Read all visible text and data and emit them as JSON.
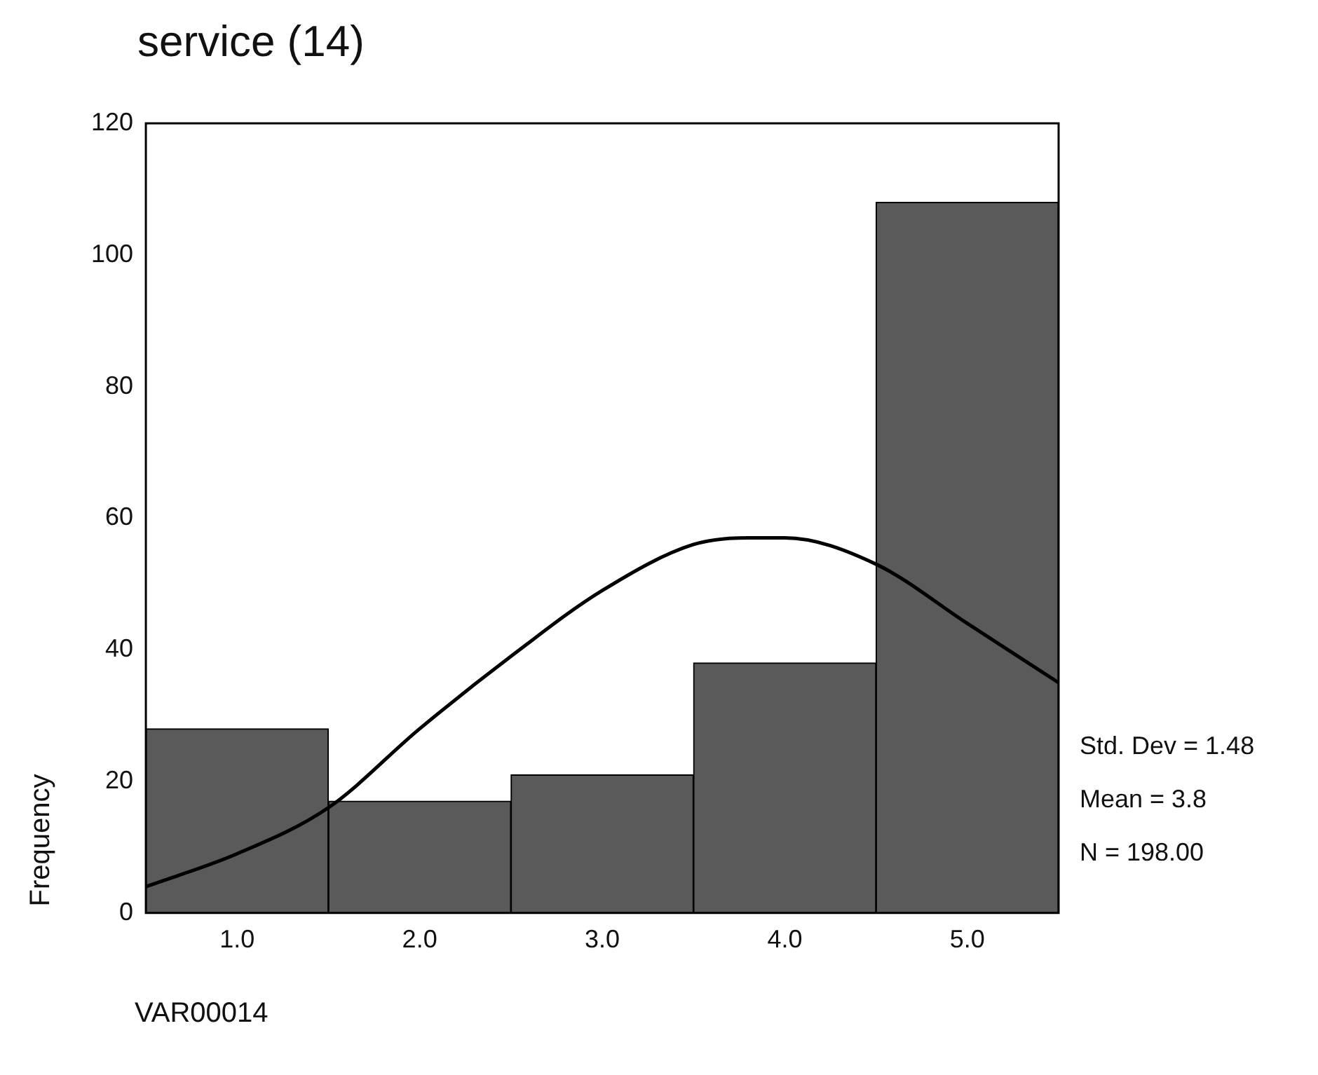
{
  "chart_data": {
    "type": "histogram",
    "title": "service (14)",
    "xlabel": "VAR00014",
    "ylabel": "Frequency",
    "bins": [
      0.5,
      1.5,
      2.5,
      3.5,
      4.5,
      5.5
    ],
    "values": [
      28,
      17,
      21,
      38,
      108
    ],
    "color": "#5a5a5a",
    "series": [
      {
        "type": "line",
        "color": "#000000",
        "x": [
          0.5,
          1.0,
          1.5,
          2.0,
          2.5,
          3.0,
          3.5,
          3.8,
          4.0,
          4.5,
          5.0,
          5.5
        ],
        "values": [
          4,
          9,
          16,
          28,
          39,
          49,
          56,
          57,
          57,
          53,
          44,
          35
        ]
      }
    ],
    "xlim": [
      0.5,
      5.5
    ],
    "xticks": [
      {
        "value": 1,
        "label": "1.0"
      },
      {
        "value": 2,
        "label": "2.0"
      },
      {
        "value": 3,
        "label": "3.0"
      },
      {
        "value": 4,
        "label": "4.0"
      },
      {
        "value": 5,
        "label": "5.0"
      }
    ],
    "ylim": [
      0,
      120
    ],
    "yticks": [
      0,
      20,
      40,
      60,
      80,
      100,
      120
    ],
    "grid": false,
    "legend": false,
    "annotations": [
      "Std. Dev = 1.48",
      "Mean = 3.8",
      "N = 198.00"
    ]
  }
}
